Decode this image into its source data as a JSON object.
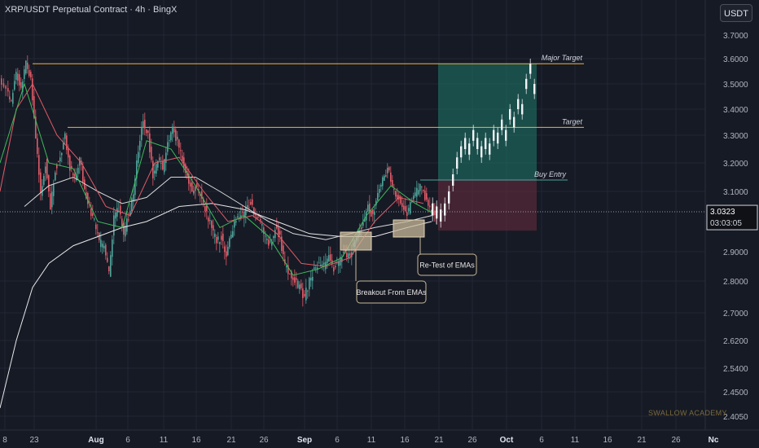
{
  "header": {
    "title": "XRP/USDT Perpetual Contract · 4h · BingX",
    "currency": "USDT"
  },
  "watermark": "SWALLOW ACADEMY",
  "colors": {
    "background": "#161a25",
    "grid": "#232734",
    "up": "#4fa39a",
    "down": "#e05b67",
    "target": "#f0b23c",
    "tp_zone": "#1f7a6b",
    "sl_zone": "#6b2e3e"
  },
  "chart_data": {
    "type": "candlestick",
    "title": "XRP/USDT Perpetual Contract · 4h · BingX",
    "y_ticks": [
      "3.7000",
      "3.6000",
      "3.5000",
      "3.4000",
      "3.3000",
      "3.2000",
      "3.1000",
      "2.9000",
      "2.8000",
      "2.7000",
      "2.6200",
      "2.5400",
      "2.4500",
      "2.4050"
    ],
    "x_ticks": [
      "8",
      "23",
      "Aug",
      "6",
      "11",
      "16",
      "21",
      "26",
      "Sep",
      "6",
      "11",
      "16",
      "21",
      "26",
      "Oct",
      "6",
      "11",
      "16",
      "21",
      "26",
      "Nc"
    ],
    "current_price": "3.0323",
    "countdown": "03:03:05",
    "levels": [
      {
        "label": "Major Target",
        "price": 3.58
      },
      {
        "label": "Target",
        "price": 3.33
      },
      {
        "label": "Buy Entry",
        "price": 3.14
      }
    ],
    "annotations": [
      "Breakout From EMAs",
      "Re-Test of EMAs"
    ],
    "position": {
      "entry": 3.14,
      "target": 3.58,
      "stop": 2.97
    }
  }
}
